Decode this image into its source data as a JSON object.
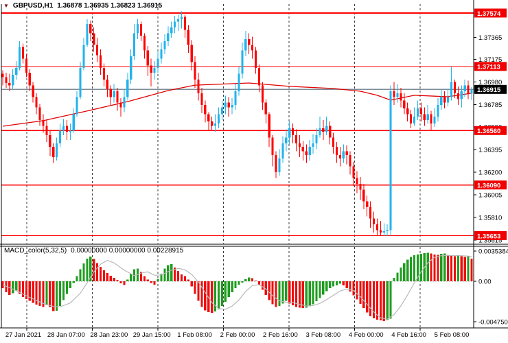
{
  "header": {
    "icon": "▼",
    "symbol": "GBPUSD,H1",
    "quote": "1.36878 1.36935 1.36823 1.36915"
  },
  "macd": {
    "label": "MACD_color(5,32,5)",
    "readout": "0.00000000 0.00000000 0.00228915",
    "axis_labels": [
      "0.0035384",
      "0.00",
      "-0.0047500"
    ]
  },
  "colors": {
    "background": "#ffffff",
    "candle_up": "#22b3ec",
    "candle_down": "#ff0000",
    "level_line": "#ff0000",
    "level_label_bg": "#f00000",
    "level_label_text": "#ffffff",
    "current_price_line": "#7e8c98",
    "current_label_bg": "#000000",
    "ma_line": "#e00000",
    "macd_up": "#1e9d1e",
    "macd_down": "#ee0d0d",
    "macd_signal": "#b9b9b9",
    "grid": "#3a3a3a",
    "axis_text": "#000000"
  },
  "chart_data": {
    "type": "candlestick",
    "symbol": "GBPUSD",
    "timeframe": "H1",
    "current_bar": {
      "open": 1.36878,
      "high": 1.36935,
      "low": 1.36823,
      "close": 1.36915
    },
    "current_price": 1.36915,
    "levels": [
      1.37574,
      1.37113,
      1.3656,
      1.3609,
      1.35653
    ],
    "price_ticks": [
      "1.37365",
      "1.37175",
      "1.36980",
      "1.36785",
      "1.36590",
      "1.36395",
      "1.36200",
      "1.36005",
      "1.35810",
      "1.35615"
    ],
    "time_labels": [
      "27 Jan 2021",
      "28 Jan 07:00",
      "28 Jan 23:00",
      "29 Jan 15:00",
      "1 Feb 08:00",
      "2 Feb 00:00",
      "2 Feb 16:00",
      "3 Feb 08:00",
      "4 Feb 00:00",
      "4 Feb 16:00",
      "5 Feb 08:00"
    ],
    "macd_axis": {
      "max": 0.0035384,
      "zero": 0.0,
      "min": -0.00475
    },
    "first_open_e5": 137050,
    "candles_hlc_e5": [
      [
        137080,
        136950,
        137020
      ],
      [
        137060,
        136930,
        136970
      ],
      [
        137050,
        136900,
        136950
      ],
      [
        137090,
        136920,
        137040
      ],
      [
        137160,
        137000,
        137100
      ],
      [
        137330,
        137080,
        137280
      ],
      [
        137310,
        137140,
        137180
      ],
      [
        137220,
        137020,
        137060
      ],
      [
        137090,
        136900,
        136950
      ],
      [
        136980,
        136800,
        136850
      ],
      [
        136880,
        136700,
        136760
      ],
      [
        136790,
        136600,
        136650
      ],
      [
        136700,
        136540,
        136600
      ],
      [
        136650,
        136460,
        136520
      ],
      [
        136560,
        136340,
        136420
      ],
      [
        136450,
        136280,
        136330
      ],
      [
        136500,
        136300,
        136450
      ],
      [
        136620,
        136420,
        136560
      ],
      [
        136660,
        136520,
        136600
      ],
      [
        136650,
        136480,
        136550
      ],
      [
        136620,
        136480,
        136560
      ],
      [
        136750,
        136540,
        136700
      ],
      [
        136900,
        136680,
        136850
      ],
      [
        137150,
        136830,
        137100
      ],
      [
        137360,
        137080,
        137300
      ],
      [
        137520,
        137280,
        137480
      ],
      [
        137510,
        137330,
        137400
      ],
      [
        137450,
        137240,
        137300
      ],
      [
        137360,
        137150,
        137210
      ],
      [
        137260,
        137040,
        137100
      ],
      [
        137140,
        136940,
        137000
      ],
      [
        137040,
        136850,
        136920
      ],
      [
        136950,
        136780,
        136850
      ],
      [
        136960,
        136800,
        136900
      ],
      [
        136930,
        136730,
        136800
      ],
      [
        136840,
        136680,
        136760
      ],
      [
        136920,
        136720,
        136850
      ],
      [
        137060,
        136820,
        137000
      ],
      [
        137260,
        136960,
        137200
      ],
      [
        137480,
        137170,
        137400
      ],
      [
        137520,
        137350,
        137480
      ],
      [
        137500,
        137330,
        137380
      ],
      [
        137400,
        137180,
        137250
      ],
      [
        137290,
        137030,
        137120
      ],
      [
        137180,
        136940,
        137060
      ],
      [
        137160,
        137000,
        137100
      ],
      [
        137240,
        137060,
        137180
      ],
      [
        137320,
        137140,
        137260
      ],
      [
        137390,
        137220,
        137330
      ],
      [
        137460,
        137290,
        137400
      ],
      [
        137500,
        137360,
        137450
      ],
      [
        137550,
        137400,
        137500
      ],
      [
        137560,
        137420,
        137520
      ],
      [
        137590,
        137440,
        137540
      ],
      [
        137560,
        137360,
        137430
      ],
      [
        137470,
        137230,
        137300
      ],
      [
        137340,
        137080,
        137150
      ],
      [
        137200,
        136930,
        137000
      ],
      [
        137060,
        136820,
        136880
      ],
      [
        136930,
        136710,
        136780
      ],
      [
        136820,
        136630,
        136700
      ],
      [
        136720,
        136560,
        136640
      ],
      [
        136680,
        136560,
        136600
      ],
      [
        136700,
        136550,
        136620
      ],
      [
        136760,
        136580,
        136700
      ],
      [
        136820,
        136650,
        136760
      ],
      [
        136860,
        136700,
        136800
      ],
      [
        136850,
        136680,
        136760
      ],
      [
        136840,
        136700,
        136780
      ],
      [
        136960,
        136740,
        136900
      ],
      [
        137110,
        136860,
        137050
      ],
      [
        137320,
        137010,
        137250
      ],
      [
        137420,
        137200,
        137350
      ],
      [
        137400,
        137220,
        137300
      ],
      [
        137370,
        137180,
        137250
      ],
      [
        137280,
        137050,
        137100
      ],
      [
        137130,
        136890,
        136950
      ],
      [
        136980,
        136740,
        136800
      ],
      [
        136830,
        136620,
        136700
      ],
      [
        136720,
        136420,
        136500
      ],
      [
        136520,
        136250,
        136350
      ],
      [
        136380,
        136150,
        136200
      ],
      [
        136400,
        136170,
        136320
      ],
      [
        136510,
        136280,
        136450
      ],
      [
        136570,
        136380,
        136500
      ],
      [
        136640,
        136440,
        136580
      ],
      [
        136620,
        136450,
        136520
      ],
      [
        136570,
        136380,
        136450
      ],
      [
        136520,
        136330,
        136420
      ],
      [
        136470,
        136300,
        136380
      ],
      [
        136440,
        136280,
        136350
      ],
      [
        136480,
        136300,
        136420
      ],
      [
        136530,
        136360,
        136450
      ],
      [
        136580,
        136400,
        136520
      ],
      [
        136680,
        136500,
        136580
      ],
      [
        136650,
        136480,
        136550
      ],
      [
        136680,
        136520,
        136600
      ],
      [
        136640,
        136440,
        136500
      ],
      [
        136540,
        136360,
        136420
      ],
      [
        136460,
        136280,
        136350
      ],
      [
        136420,
        136250,
        136320
      ],
      [
        136440,
        136280,
        136380
      ],
      [
        136430,
        136270,
        136350
      ],
      [
        136380,
        136180,
        136250
      ],
      [
        136290,
        136080,
        136150
      ],
      [
        136210,
        136020,
        136100
      ],
      [
        136160,
        135960,
        136050
      ],
      [
        136100,
        135880,
        135950
      ],
      [
        136000,
        135820,
        135900
      ],
      [
        135950,
        135720,
        135800
      ],
      [
        135860,
        135680,
        135750
      ],
      [
        135800,
        135660,
        135700
      ],
      [
        135780,
        135655,
        135680
      ],
      [
        135760,
        135650,
        135690
      ],
      [
        135750,
        135650,
        135700
      ],
      [
        136950,
        135660,
        136900
      ],
      [
        136980,
        136780,
        136850
      ],
      [
        136960,
        136800,
        136880
      ],
      [
        136930,
        136760,
        136820
      ],
      [
        136880,
        136700,
        136750
      ],
      [
        136800,
        136640,
        136700
      ],
      [
        136740,
        136580,
        136620
      ],
      [
        136760,
        136600,
        136680
      ],
      [
        136820,
        136650,
        136750
      ],
      [
        136800,
        136640,
        136700
      ],
      [
        136760,
        136600,
        136650
      ],
      [
        136780,
        136620,
        136700
      ],
      [
        136730,
        136560,
        136620
      ],
      [
        136750,
        136590,
        136680
      ],
      [
        136840,
        136640,
        136780
      ],
      [
        136910,
        136740,
        136850
      ],
      [
        136900,
        136750,
        136800
      ],
      [
        136920,
        136770,
        136850
      ],
      [
        137110,
        136820,
        136980
      ],
      [
        137000,
        136840,
        136880
      ],
      [
        136940,
        136780,
        136830
      ],
      [
        136950,
        136760,
        136900
      ],
      [
        137000,
        136850,
        136950
      ],
      [
        136990,
        136830,
        136878
      ],
      [
        136935,
        136823,
        136915
      ]
    ],
    "ma_points_e5": [
      [
        0,
        136597
      ],
      [
        12,
        136645
      ],
      [
        24,
        136722
      ],
      [
        37,
        136810
      ],
      [
        49,
        136905
      ],
      [
        57,
        136952
      ],
      [
        73,
        136970
      ],
      [
        85,
        136941
      ],
      [
        98,
        136923
      ],
      [
        106,
        136899
      ],
      [
        111,
        136864
      ],
      [
        115,
        136822
      ],
      [
        122,
        136864
      ],
      [
        132,
        136852
      ],
      [
        139,
        136882
      ]
    ],
    "macd_hist_e5": [
      -80,
      -130,
      -160,
      -140,
      -110,
      -150,
      -185,
      -210,
      -230,
      -255,
      -275,
      -290,
      -300,
      -280,
      -300,
      -350,
      -345,
      -290,
      -220,
      -150,
      -80,
      -20,
      60,
      140,
      210,
      265,
      290,
      260,
      215,
      170,
      130,
      95,
      65,
      40,
      15,
      -25,
      -45,
      20,
      90,
      140,
      150,
      110,
      60,
      20,
      -20,
      -40,
      30,
      90,
      150,
      190,
      200,
      160,
      120,
      80,
      60,
      20,
      -60,
      -150,
      -230,
      -300,
      -340,
      -360,
      -370,
      -355,
      -330,
      -290,
      -240,
      -185,
      -130,
      -80,
      -40,
      -15,
      25,
      45,
      35,
      10,
      -40,
      -100,
      -160,
      -220,
      -270,
      -300,
      -290,
      -260,
      -230,
      -260,
      -280,
      -300,
      -310,
      -315,
      -310,
      -295,
      -270,
      -235,
      -195,
      -155,
      -115,
      -80,
      -60,
      -50,
      -30,
      -50,
      -80,
      -120,
      -165,
      -215,
      -265,
      -315,
      -365,
      -410,
      -435,
      -450,
      -460,
      -465,
      -455,
      -440,
      40,
      100,
      160,
      215,
      255,
      285,
      305,
      315,
      320,
      330,
      335,
      325,
      315,
      310,
      320,
      325,
      310,
      300,
      295,
      305,
      295,
      285,
      295,
      265
    ],
    "macd_signal_points_e5": [
      [
        0,
        -40
      ],
      [
        4,
        -110
      ],
      [
        8,
        -190
      ],
      [
        12,
        -260
      ],
      [
        15,
        -295
      ],
      [
        17,
        -300
      ],
      [
        20,
        -255
      ],
      [
        23,
        -140
      ],
      [
        25,
        -20
      ],
      [
        27,
        110
      ],
      [
        29,
        200
      ],
      [
        31,
        245
      ],
      [
        33,
        215
      ],
      [
        36,
        130
      ],
      [
        39,
        65
      ],
      [
        41,
        95
      ],
      [
        43,
        110
      ],
      [
        45,
        70
      ],
      [
        47,
        75
      ],
      [
        50,
        130
      ],
      [
        52,
        150
      ],
      [
        54,
        135
      ],
      [
        56,
        80
      ],
      [
        58,
        -10
      ],
      [
        60,
        -130
      ],
      [
        62,
        -250
      ],
      [
        64,
        -320
      ],
      [
        66,
        -330
      ],
      [
        68,
        -290
      ],
      [
        70,
        -220
      ],
      [
        72,
        -120
      ],
      [
        74,
        -50
      ],
      [
        76,
        -40
      ],
      [
        78,
        -90
      ],
      [
        80,
        -170
      ],
      [
        82,
        -230
      ],
      [
        84,
        -245
      ],
      [
        86,
        -250
      ],
      [
        88,
        -270
      ],
      [
        90,
        -290
      ],
      [
        92,
        -285
      ],
      [
        94,
        -260
      ],
      [
        96,
        -215
      ],
      [
        98,
        -165
      ],
      [
        100,
        -115
      ],
      [
        102,
        -90
      ],
      [
        104,
        -110
      ],
      [
        106,
        -180
      ],
      [
        108,
        -270
      ],
      [
        110,
        -360
      ],
      [
        112,
        -430
      ],
      [
        114,
        -445
      ],
      [
        116,
        -390
      ],
      [
        118,
        -290
      ],
      [
        120,
        -160
      ],
      [
        122,
        -20
      ],
      [
        124,
        110
      ],
      [
        126,
        215
      ],
      [
        128,
        280
      ],
      [
        130,
        300
      ],
      [
        132,
        305
      ],
      [
        134,
        300
      ],
      [
        136,
        300
      ],
      [
        138,
        295
      ],
      [
        139,
        290
      ]
    ]
  }
}
